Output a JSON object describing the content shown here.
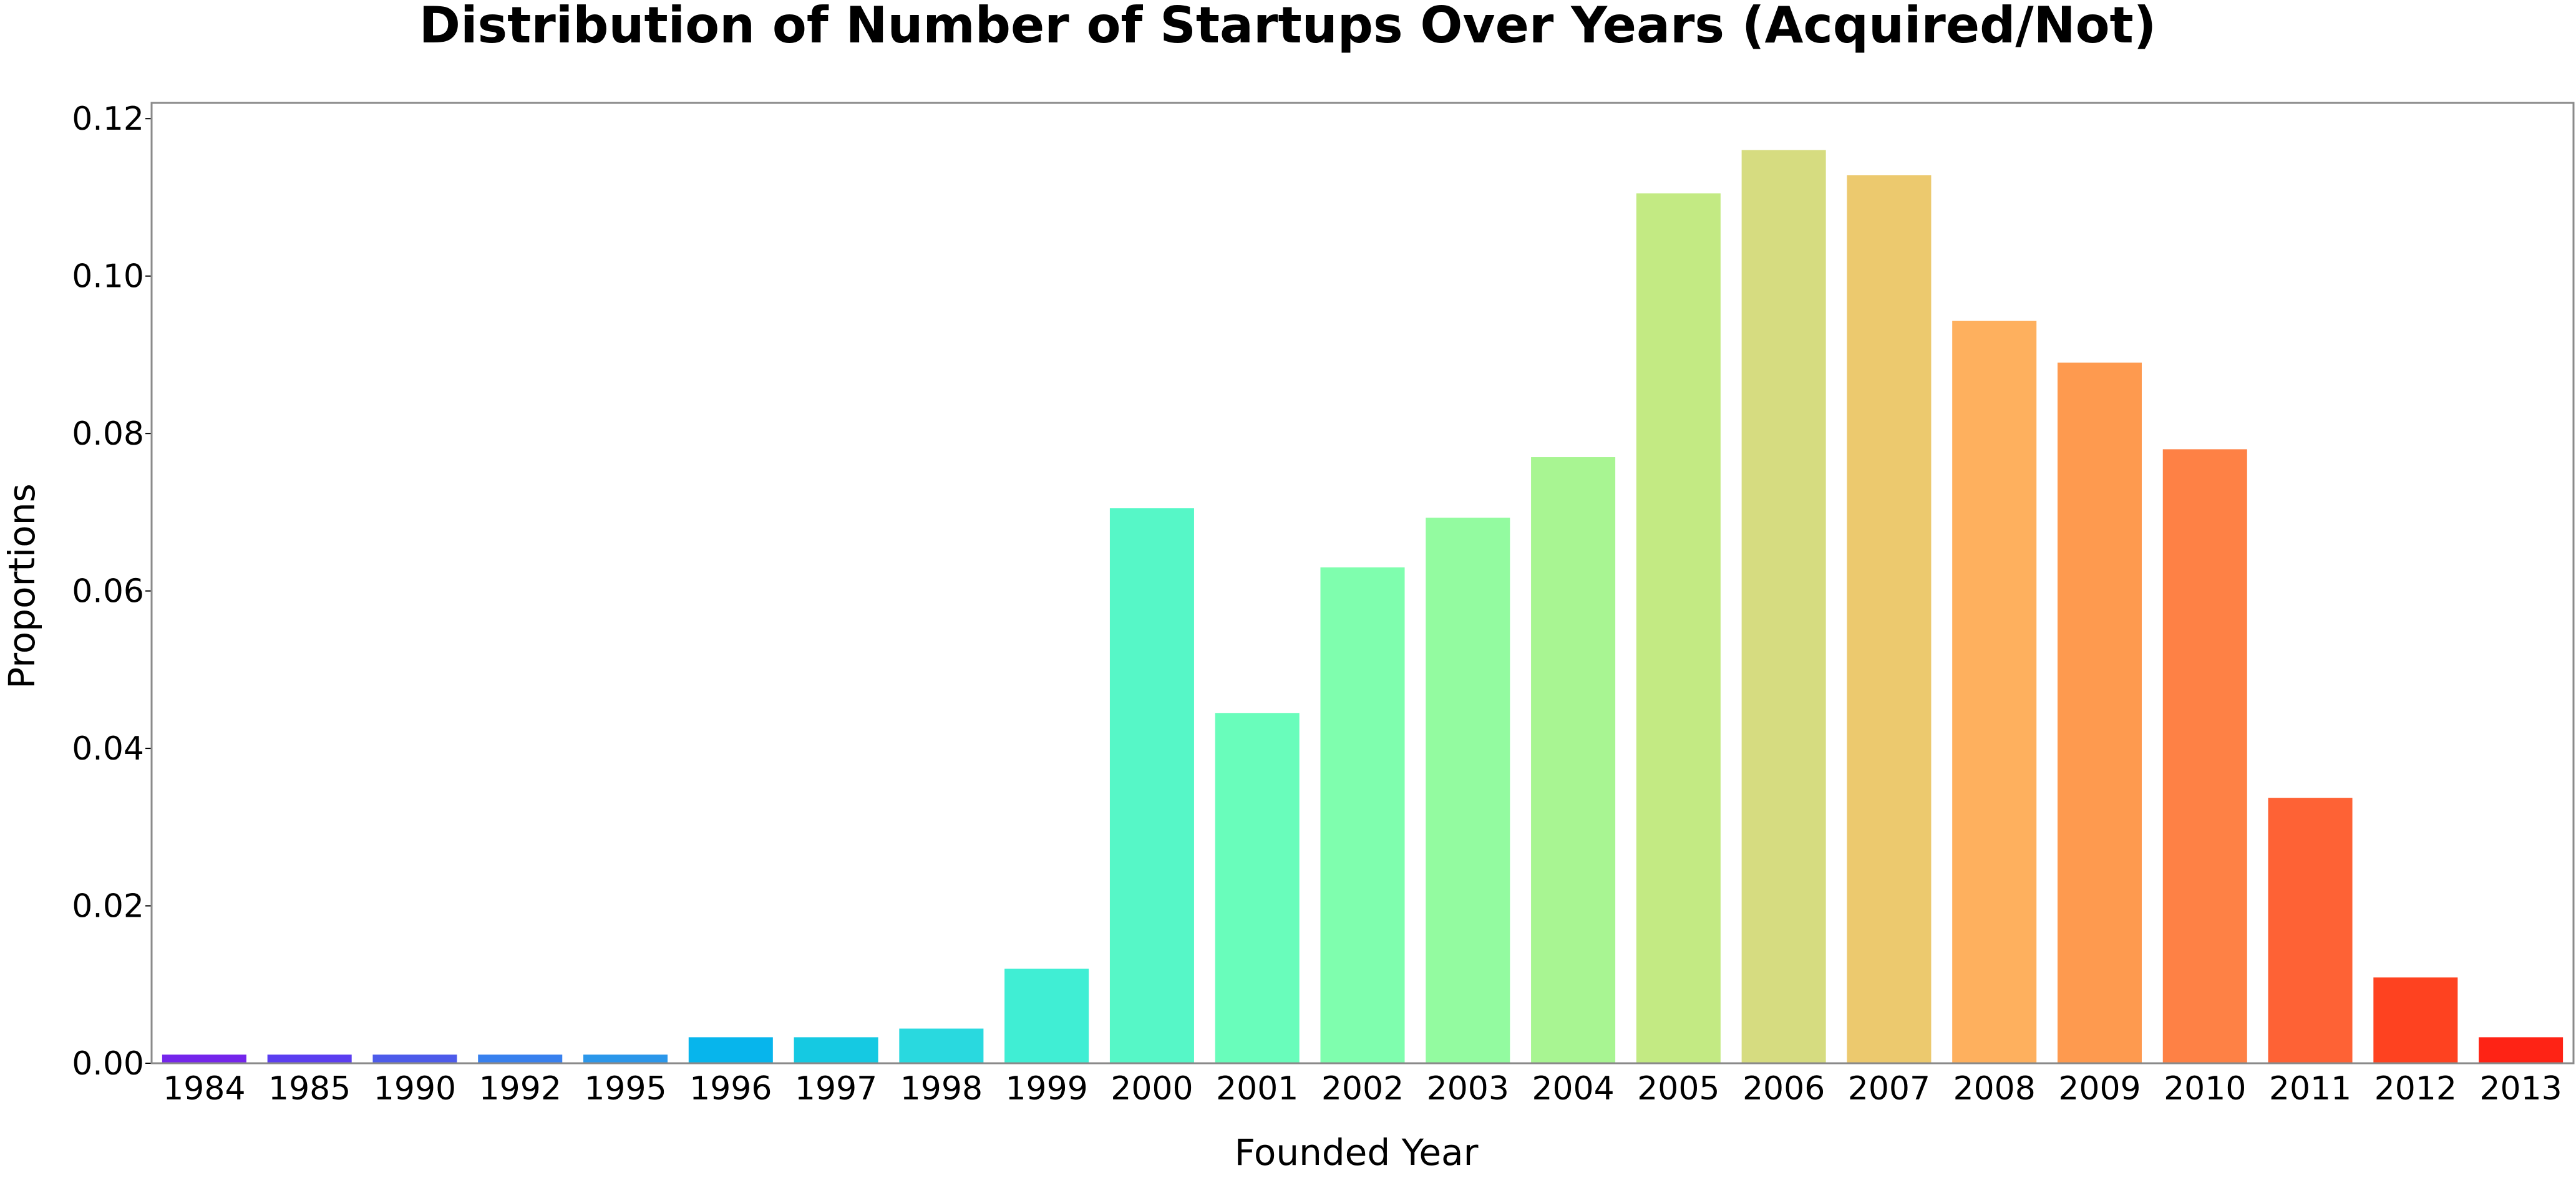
{
  "chart_data": {
    "type": "bar",
    "title": "Distribution of Number of Startups Over Years (Acquired/Not)",
    "xlabel": "Founded Year",
    "ylabel": "Proportions",
    "ylim": [
      0,
      0.122
    ],
    "yticks": [
      "0.00",
      "0.02",
      "0.04",
      "0.06",
      "0.08",
      "0.10",
      "0.12"
    ],
    "grid": false,
    "categories": [
      "1984",
      "1985",
      "1990",
      "1992",
      "1995",
      "1996",
      "1997",
      "1998",
      "1999",
      "2000",
      "2001",
      "2002",
      "2003",
      "2004",
      "2005",
      "2006",
      "2007",
      "2008",
      "2009",
      "2010",
      "2011",
      "2012",
      "2013"
    ],
    "values": [
      0.0011,
      0.0011,
      0.0011,
      0.0011,
      0.0011,
      0.0033,
      0.0033,
      0.0044,
      0.012,
      0.0705,
      0.0445,
      0.063,
      0.0693,
      0.077,
      0.1105,
      0.116,
      0.1128,
      0.0943,
      0.089,
      0.078,
      0.0337,
      0.0109,
      0.0033
    ],
    "colors": [
      "#7425eb",
      "#5b3ef0",
      "#4d5bea",
      "#3880ee",
      "#2b97ea",
      "#07b5ec",
      "#15c9e2",
      "#29d9df",
      "#40eed4",
      "#56f7c7",
      "#69fdbb",
      "#7ffeae",
      "#93fba0",
      "#a8f592",
      "#c3ea83",
      "#d6dc80",
      "#ecc96e",
      "#feb05e",
      "#fe9a4f",
      "#fe8145",
      "#fe6235",
      "#fe4220",
      "#fe2315"
    ]
  }
}
